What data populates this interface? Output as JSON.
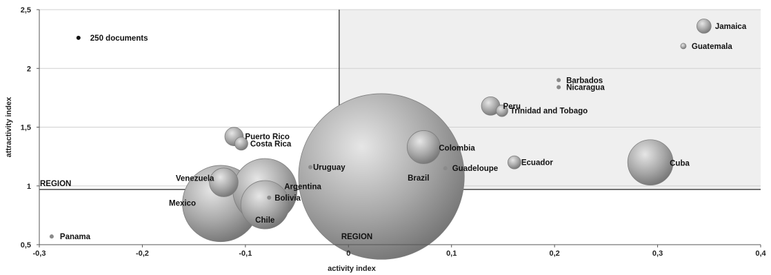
{
  "chart_data": {
    "type": "scatter",
    "subtype": "bubble",
    "title": "",
    "xlabel": "activity index",
    "ylabel": "attractivity index",
    "xlim": [
      -0.3,
      0.4
    ],
    "ylim": [
      0.5,
      2.5
    ],
    "x_ticks": [
      "-0,3",
      "-0,2",
      "-0,1",
      "0",
      "0,1",
      "0,2",
      "0,3",
      "0,4"
    ],
    "y_ticks": [
      "0,5",
      "1",
      "1,5",
      "2",
      "2,5"
    ],
    "grid": "horizontal",
    "reference_lines": {
      "x": -0.009,
      "y": 0.97
    },
    "shaded_quadrant": "top-right",
    "region_labels": {
      "horizontal": "REGION",
      "vertical": "REGION"
    },
    "bubble_color": "#9a9a9a",
    "shade_color": "#efefef",
    "legend": {
      "label": "250 documents",
      "x": -0.262,
      "y": 2.26,
      "documents": 250
    },
    "points": [
      {
        "name": "Jamaica",
        "x": 0.345,
        "y": 2.36,
        "documents": 3000
      },
      {
        "name": "Guatemala",
        "x": 0.325,
        "y": 2.19,
        "documents": 450
      },
      {
        "name": "Barbados",
        "x": 0.204,
        "y": 1.9,
        "documents": 250
      },
      {
        "name": "Nicaragua",
        "x": 0.204,
        "y": 1.84,
        "documents": 250
      },
      {
        "name": "Peru",
        "x": 0.138,
        "y": 1.68,
        "documents": 5000
      },
      {
        "name": "Trinidad and Tobago",
        "x": 0.149,
        "y": 1.64,
        "documents": 2000
      },
      {
        "name": "Puerto Rico",
        "x": -0.111,
        "y": 1.42,
        "documents": 5000
      },
      {
        "name": "Costa Rica",
        "x": -0.104,
        "y": 1.36,
        "documents": 2500
      },
      {
        "name": "Colombia",
        "x": 0.073,
        "y": 1.33,
        "documents": 16000
      },
      {
        "name": "Ecuador",
        "x": 0.161,
        "y": 1.2,
        "documents": 2500
      },
      {
        "name": "Cuba",
        "x": 0.293,
        "y": 1.2,
        "documents": 30000
      },
      {
        "name": "Uruguay",
        "x": -0.037,
        "y": 1.16,
        "documents": 250
      },
      {
        "name": "Guadeloupe",
        "x": 0.094,
        "y": 1.15,
        "documents": 250
      },
      {
        "name": "Brazil",
        "x": 0.032,
        "y": 1.08,
        "documents": 400000
      },
      {
        "name": "Venezuela",
        "x": -0.121,
        "y": 1.03,
        "documents": 12000
      },
      {
        "name": "Argentina",
        "x": -0.081,
        "y": 0.96,
        "documents": 60000
      },
      {
        "name": "Bolivia",
        "x": -0.077,
        "y": 0.9,
        "documents": 250
      },
      {
        "name": "Mexico",
        "x": -0.124,
        "y": 0.85,
        "documents": 85000
      },
      {
        "name": "Chile",
        "x": -0.081,
        "y": 0.84,
        "documents": 34000
      },
      {
        "name": "Panama",
        "x": -0.288,
        "y": 0.57,
        "documents": 250
      }
    ]
  }
}
